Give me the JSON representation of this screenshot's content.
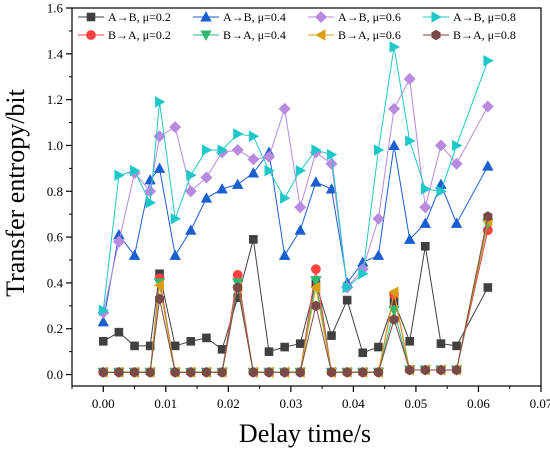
{
  "chart_data": {
    "type": "line",
    "xlabel": "Delay time/s",
    "ylabel": "Transfer entropy/bit",
    "xlim": [
      -0.005,
      0.07
    ],
    "ylim": [
      -0.05,
      1.6
    ],
    "xticks": [
      "0.00",
      "0.01",
      "0.02",
      "0.03",
      "0.04",
      "0.05",
      "0.06",
      "0.07"
    ],
    "yticks": [
      "0.0",
      "0.2",
      "0.4",
      "0.6",
      "0.8",
      "1.0",
      "1.2",
      "1.4",
      "1.6"
    ],
    "xtick_values": [
      0.0,
      0.01,
      0.02,
      0.03,
      0.04,
      0.05,
      0.06,
      0.07
    ],
    "ytick_values": [
      0.0,
      0.2,
      0.4,
      0.6,
      0.8,
      1.0,
      1.2,
      1.4,
      1.6
    ],
    "grid": false,
    "legend_position": "top",
    "x": [
      0.0,
      0.0025,
      0.005,
      0.0075,
      0.009,
      0.0115,
      0.014,
      0.0165,
      0.019,
      0.0215,
      0.024,
      0.0265,
      0.029,
      0.0315,
      0.034,
      0.0365,
      0.039,
      0.0415,
      0.044,
      0.0465,
      0.049,
      0.0515,
      0.054,
      0.0565,
      0.0615
    ],
    "series": [
      {
        "name": "A→B, μ=0.2",
        "marker": "square",
        "color": "#404040",
        "values": [
          0.145,
          0.185,
          0.125,
          0.125,
          0.44,
          0.125,
          0.145,
          0.16,
          0.11,
          0.335,
          0.59,
          0.1,
          0.12,
          0.135,
          0.4,
          0.17,
          0.325,
          0.095,
          0.12,
          0.32,
          0.145,
          0.56,
          0.135,
          0.125,
          0.38
        ]
      },
      {
        "name": "B→A, μ=0.2",
        "marker": "circle",
        "color": "#ff4040",
        "values": [
          0.01,
          0.01,
          0.01,
          0.01,
          0.42,
          0.01,
          0.01,
          0.01,
          0.01,
          0.435,
          0.01,
          0.01,
          0.01,
          0.01,
          0.46,
          0.01,
          0.01,
          0.01,
          0.01,
          0.35,
          0.02,
          0.02,
          0.02,
          0.02,
          0.63
        ]
      },
      {
        "name": "A→B, μ=0.4",
        "marker": "triangle-up",
        "color": "#1a5fd0",
        "values": [
          0.23,
          0.61,
          0.52,
          0.85,
          0.9,
          0.52,
          0.63,
          0.77,
          0.81,
          0.83,
          0.88,
          0.97,
          0.52,
          0.63,
          0.84,
          0.81,
          0.4,
          0.49,
          0.52,
          1.0,
          0.59,
          0.66,
          0.83,
          0.66,
          0.91
        ]
      },
      {
        "name": "B→A, μ=0.4",
        "marker": "triangle-down",
        "color": "#2eb872",
        "values": [
          0.01,
          0.01,
          0.01,
          0.01,
          0.4,
          0.01,
          0.01,
          0.01,
          0.01,
          0.4,
          0.01,
          0.01,
          0.01,
          0.01,
          0.41,
          0.01,
          0.01,
          0.01,
          0.01,
          0.28,
          0.02,
          0.02,
          0.02,
          0.02,
          0.66
        ]
      },
      {
        "name": "A→B, μ=0.6",
        "marker": "diamond",
        "color": "#b88ae0",
        "values": [
          0.27,
          0.58,
          0.88,
          0.8,
          1.04,
          1.08,
          0.8,
          0.86,
          0.97,
          0.98,
          0.94,
          0.95,
          1.16,
          0.73,
          0.97,
          0.92,
          0.38,
          0.46,
          0.68,
          1.16,
          1.29,
          0.73,
          1.0,
          0.92,
          1.17
        ]
      },
      {
        "name": "B→A, μ=0.6",
        "marker": "triangle-left",
        "color": "#d9a017",
        "values": [
          0.01,
          0.01,
          0.01,
          0.01,
          0.39,
          0.01,
          0.01,
          0.01,
          0.01,
          0.38,
          0.01,
          0.01,
          0.01,
          0.01,
          0.38,
          0.01,
          0.01,
          0.01,
          0.01,
          0.36,
          0.02,
          0.02,
          0.02,
          0.02,
          0.67
        ]
      },
      {
        "name": "A→B, μ=0.8",
        "marker": "triangle-right",
        "color": "#1fc8c8",
        "values": [
          0.28,
          0.87,
          0.89,
          0.75,
          1.19,
          0.68,
          0.87,
          0.98,
          0.98,
          1.05,
          1.04,
          0.89,
          0.77,
          0.89,
          0.98,
          0.96,
          0.38,
          0.44,
          0.98,
          1.43,
          1.02,
          0.81,
          0.8,
          1.0,
          1.37
        ]
      },
      {
        "name": "B→A, μ=0.8",
        "marker": "hexagon",
        "color": "#7a4a48",
        "values": [
          0.01,
          0.01,
          0.01,
          0.01,
          0.33,
          0.01,
          0.01,
          0.01,
          0.01,
          0.38,
          0.01,
          0.01,
          0.01,
          0.01,
          0.3,
          0.01,
          0.01,
          0.01,
          0.01,
          0.24,
          0.02,
          0.02,
          0.02,
          0.02,
          0.69
        ]
      }
    ]
  }
}
